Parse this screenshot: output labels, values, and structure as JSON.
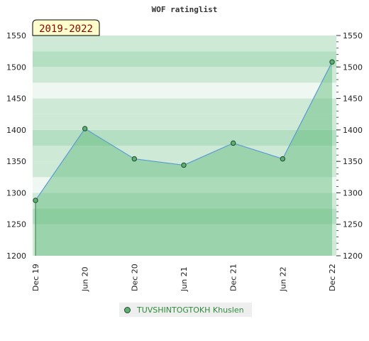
{
  "chart_data": {
    "type": "area",
    "title": "WOF ratinglist",
    "period_label": "2019-2022",
    "x_tick_labels": [
      "Dec 19",
      "Jun 20",
      "Dec 20",
      "Jun 21",
      "Dec 21",
      "Jun 22",
      "Dec 22"
    ],
    "y_tick_labels": [
      "1200",
      "1250",
      "1300",
      "1350",
      "1400",
      "1450",
      "1500",
      "1550"
    ],
    "ylim": [
      1200,
      1550
    ],
    "y_ticks": [
      1200,
      1250,
      1300,
      1350,
      1400,
      1450,
      1500,
      1550
    ],
    "series": [
      {
        "name": "TUVSHINTOGTOKH Khuslen",
        "x": [
          "Dec 19",
          "Jun 20",
          "Dec 20",
          "Jun 21",
          "Dec 21",
          "Jun 22",
          "Dec 22"
        ],
        "values": [
          1288,
          1402,
          1354,
          1344,
          1379,
          1354,
          1508
        ]
      }
    ],
    "legend_position": "bottom-center",
    "grid": true,
    "colors": {
      "line": "#5b9bd5",
      "area": "#5cb878",
      "marker_fill": "#5daf74",
      "marker_stroke": "#1f4a2a",
      "band_light": "#eef7f1",
      "band_mid": "#cfe9d7",
      "band_dark": "#b5dfc2",
      "badge_bg": "#ffffcc",
      "badge_text": "#8b0000"
    }
  }
}
